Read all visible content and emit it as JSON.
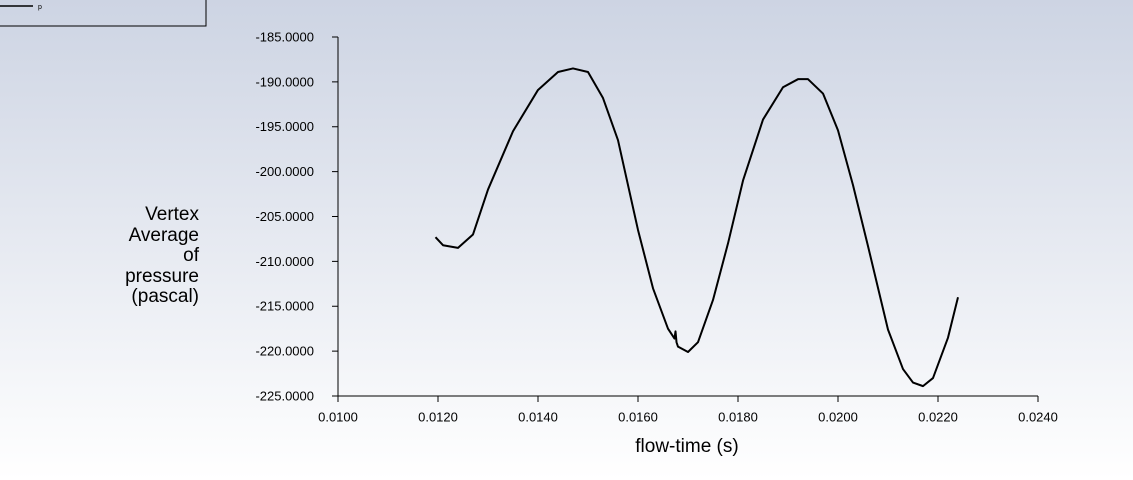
{
  "chart_data": {
    "type": "line",
    "xlabel": "flow-time (s)",
    "ylabel": "Vertex Average of pressure (pascal)",
    "series": [
      {
        "name": "p",
        "color": "#000000",
        "x": [
          0.01195,
          0.0121,
          0.0124,
          0.0127,
          0.013,
          0.0135,
          0.014,
          0.0144,
          0.0147,
          0.015,
          0.0153,
          0.0156,
          0.016,
          0.0163,
          0.0166,
          0.01673,
          0.01675,
          0.01677,
          0.0168,
          0.017,
          0.0172,
          0.0175,
          0.0178,
          0.0181,
          0.0185,
          0.0189,
          0.0192,
          0.0194,
          0.0197,
          0.02,
          0.0203,
          0.0206,
          0.021,
          0.0213,
          0.0215,
          0.0217,
          0.0219,
          0.0222,
          0.0224
        ],
        "values": [
          -207.3,
          -208.2,
          -208.5,
          -207.0,
          -202.0,
          -195.5,
          -190.9,
          -188.9,
          -188.5,
          -188.9,
          -191.8,
          -196.5,
          -206.5,
          -213.0,
          -217.5,
          -218.6,
          -217.8,
          -219.0,
          -219.5,
          -220.1,
          -219.0,
          -214.3,
          -208.0,
          -201.0,
          -194.2,
          -190.6,
          -189.7,
          -189.7,
          -191.3,
          -195.4,
          -201.5,
          -208.3,
          -217.6,
          -222.0,
          -223.5,
          -223.9,
          -223.0,
          -218.5,
          -214.0
        ]
      }
    ],
    "xlim": [
      0.01,
      0.024
    ],
    "xticks": [
      {
        "value": 0.01,
        "label": "0.0100"
      },
      {
        "value": 0.012,
        "label": "0.0120"
      },
      {
        "value": 0.014,
        "label": "0.0140"
      },
      {
        "value": 0.016,
        "label": "0.0160"
      },
      {
        "value": 0.018,
        "label": "0.0180"
      },
      {
        "value": 0.02,
        "label": "0.0200"
      },
      {
        "value": 0.022,
        "label": "0.0220"
      },
      {
        "value": 0.024,
        "label": "0.0240"
      }
    ],
    "ylim": [
      -225,
      -185
    ],
    "yticks": [
      {
        "value": -225,
        "label": "-225.0000"
      },
      {
        "value": -220,
        "label": "-220.0000"
      },
      {
        "value": -215,
        "label": "-215.0000"
      },
      {
        "value": -210,
        "label": "-210.0000"
      },
      {
        "value": -205,
        "label": "-205.0000"
      },
      {
        "value": -200,
        "label": "-200.0000"
      },
      {
        "value": -195,
        "label": "-195.0000"
      },
      {
        "value": -190,
        "label": "-190.0000"
      },
      {
        "value": -185,
        "label": "-185.0000"
      }
    ],
    "grid": false,
    "legend": "top-left"
  }
}
